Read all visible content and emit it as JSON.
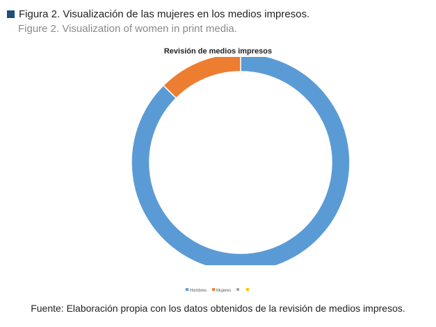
{
  "figure": {
    "caption_es": "Figura 2. Visualización de las mujeres en los medios impresos.",
    "caption_en": "Figure 2. Visualization of women in print media.",
    "source": "Fuente: Elaboración propia con los datos obtenidos de la revisión de medios impresos.",
    "caption_icon_color": "#1f4e79"
  },
  "chart_data": {
    "type": "pie",
    "variant": "donut",
    "title": "Revisión de medios impresos",
    "legend_position": "bottom",
    "categories": [
      "Hombres",
      "Mujeres",
      "",
      ""
    ],
    "values": [
      87.5,
      12.5,
      0,
      0
    ],
    "colors": [
      "#5b9bd5",
      "#ed7d31",
      "#a5a5a5",
      "#ffc000"
    ],
    "start_angle_deg": 0,
    "direction": "clockwise"
  }
}
